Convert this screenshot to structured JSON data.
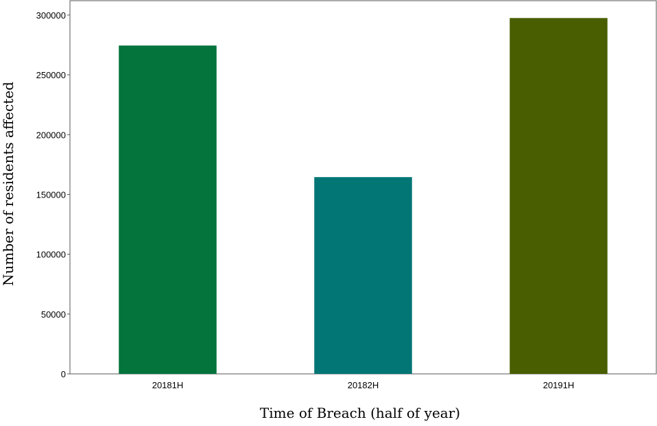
{
  "chart_data": {
    "type": "bar",
    "title": "",
    "xlabel": "Time of Breach (half of year)",
    "ylabel": "Number of residents affected",
    "categories": [
      "20181H",
      "20182H",
      "20191H"
    ],
    "values": [
      274500,
      164500,
      297500
    ],
    "colors": [
      "#04733c",
      "#027575",
      "#485e00"
    ],
    "ylim": [
      0,
      312000
    ],
    "yticks": [
      0,
      50000,
      100000,
      150000,
      200000,
      250000,
      300000
    ],
    "ytick_labels": [
      "0",
      "50000",
      "100000",
      "150000",
      "200000",
      "250000",
      "300000"
    ],
    "grid": false,
    "legend": "none"
  }
}
